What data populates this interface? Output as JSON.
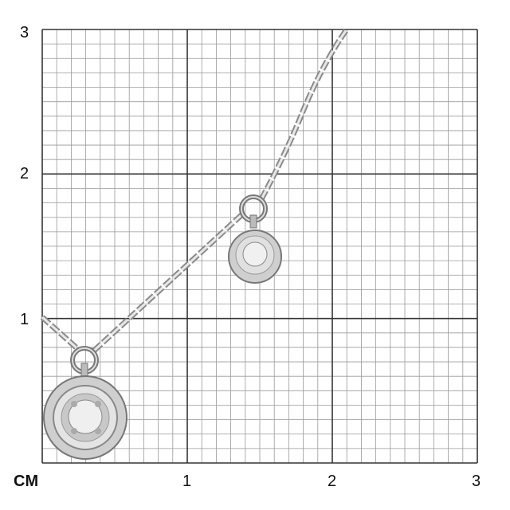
{
  "scale": {
    "unit_label": "CM",
    "x_ticks": [
      "1",
      "2",
      "3"
    ],
    "y_ticks": [
      "1",
      "2",
      "3"
    ],
    "minor_divisions_per_unit": 10,
    "range_cm": [
      0,
      3
    ]
  },
  "product": {
    "type": "necklace with two round pendants",
    "metal_color": "#b8b8b8",
    "stone_color": "#e6e6e6"
  },
  "colors": {
    "grid_minor": "#9a9a9a",
    "grid_major": "#333333"
  }
}
